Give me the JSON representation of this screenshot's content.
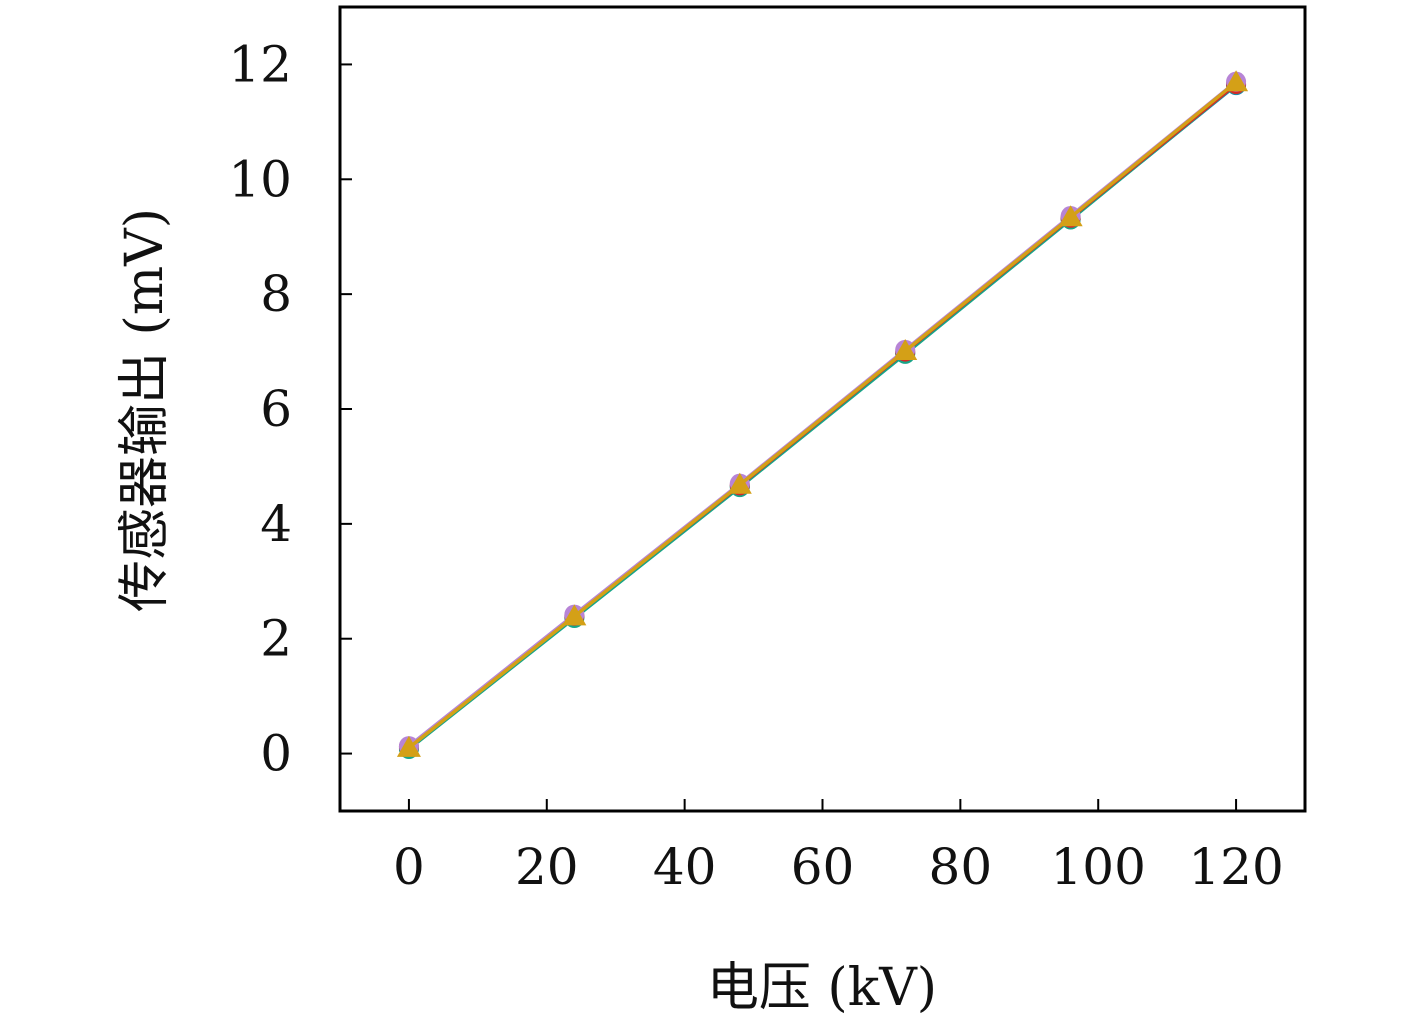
{
  "chart_data": {
    "type": "line",
    "title": "",
    "xlabel": "电压 (kV)",
    "ylabel": "传感器输出 (mV)",
    "xlim": [
      -10,
      130
    ],
    "ylim": [
      -1,
      13
    ],
    "xticks": [
      0,
      20,
      40,
      60,
      80,
      100,
      120
    ],
    "yticks": [
      0,
      2,
      4,
      6,
      8,
      10,
      12
    ],
    "grid": false,
    "legend": "none",
    "x": [
      0,
      24,
      48,
      72,
      96,
      120
    ],
    "series": [
      {
        "color": "#1f77b4",
        "marker": "circle",
        "values": [
          0.1,
          2.38,
          4.66,
          6.97,
          9.31,
          11.64
        ]
      },
      {
        "color": "#17a589",
        "marker": "circle",
        "values": [
          0.08,
          2.36,
          4.64,
          6.96,
          9.3,
          11.65
        ]
      },
      {
        "color": "#d62728",
        "marker": "circle",
        "values": [
          0.12,
          2.4,
          4.67,
          7.0,
          9.33,
          11.66
        ]
      },
      {
        "color": "#b784d6",
        "marker": "circle",
        "values": [
          0.13,
          2.42,
          4.7,
          7.03,
          9.36,
          11.7
        ]
      },
      {
        "color": "#d4a017",
        "marker": "triangle",
        "values": [
          0.1,
          2.39,
          4.68,
          7.01,
          9.34,
          11.69
        ]
      }
    ]
  }
}
